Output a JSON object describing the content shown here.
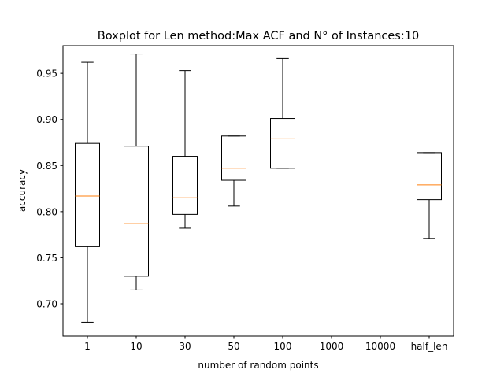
{
  "chart_data": {
    "type": "box",
    "title": "Boxplot for Len method:Max ACF and N° of Instances:10",
    "xlabel": "number of random points",
    "ylabel": "accuracy",
    "categories": [
      "1",
      "10",
      "30",
      "50",
      "100",
      "1000",
      "10000",
      "half_len"
    ],
    "ylim": [
      0.665,
      0.98
    ],
    "yticks": [
      0.7,
      0.75,
      0.8,
      0.85,
      0.9,
      0.95
    ],
    "ytick_labels": [
      "0.70",
      "0.75",
      "0.80",
      "0.85",
      "0.90",
      "0.95"
    ],
    "grid": false,
    "box_color": "#000000",
    "median_color": "#ff7f0e",
    "boxes": [
      {
        "category": "1",
        "whisker_low": 0.68,
        "q1": 0.762,
        "median": 0.817,
        "q3": 0.874,
        "whisker_high": 0.962
      },
      {
        "category": "10",
        "whisker_low": 0.715,
        "q1": 0.73,
        "median": 0.787,
        "q3": 0.871,
        "whisker_high": 0.971
      },
      {
        "category": "30",
        "whisker_low": 0.782,
        "q1": 0.797,
        "median": 0.815,
        "q3": 0.86,
        "whisker_high": 0.953
      },
      {
        "category": "50",
        "whisker_low": 0.806,
        "q1": 0.834,
        "median": 0.847,
        "q3": 0.882,
        "whisker_high": 0.882
      },
      {
        "category": "100",
        "whisker_low": 0.847,
        "q1": 0.847,
        "median": 0.879,
        "q3": 0.901,
        "whisker_high": 0.966
      },
      {
        "category": "1000",
        "empty": true
      },
      {
        "category": "10000",
        "empty": true
      },
      {
        "category": "half_len",
        "whisker_low": 0.771,
        "q1": 0.813,
        "median": 0.829,
        "q3": 0.864,
        "whisker_high": 0.864
      }
    ]
  }
}
